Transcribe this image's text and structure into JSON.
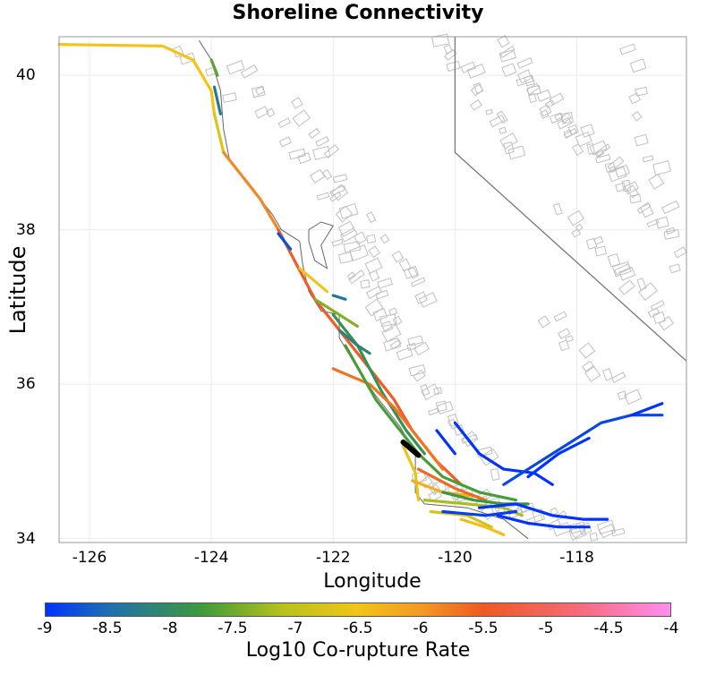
{
  "title": "Shoreline Connectivity",
  "x_axis": {
    "label": "Longitude",
    "ticks": [
      "-126",
      "-124",
      "-122",
      "-120",
      "-118"
    ],
    "range": [
      -126.5,
      -116.2
    ]
  },
  "y_axis": {
    "label": "Latitude",
    "ticks": [
      "40",
      "38",
      "36",
      "34"
    ],
    "range": [
      33.95,
      40.5
    ]
  },
  "colorbar": {
    "label": "Log10 Co-rupture Rate",
    "ticks": [
      "-9",
      "-8.5",
      "-8",
      "-7.5",
      "-7",
      "-6.5",
      "-6",
      "-5.5",
      "-5",
      "-4.5",
      "-4"
    ],
    "range": [
      -9,
      -4
    ],
    "colors": [
      "#0033ff",
      "#1f6fb0",
      "#3f9a3a",
      "#b8c21c",
      "#f2c418",
      "#f29a24",
      "#ef5a22",
      "#f46a78",
      "#ff8ef0"
    ]
  },
  "map_features": {
    "grid": true,
    "background_faults_color": "#c0c0c0",
    "state_border_color": "#777777",
    "coastline_color": "#666666",
    "highlighted_source_color": "#000000"
  },
  "chart_data": {
    "type": "map",
    "title": "Shoreline Connectivity",
    "xlabel": "Longitude",
    "ylabel": "Latitude",
    "xlim": [
      -126.5,
      -116.2
    ],
    "ylim": [
      33.95,
      40.5
    ],
    "colorscale_label": "Log10 Co-rupture Rate",
    "colorscale_range": [
      -9,
      -4
    ],
    "source_fault": {
      "name": "",
      "points": [
        [
          -120.85,
          35.25
        ],
        [
          -120.6,
          35.08
        ]
      ]
    },
    "fault_traces": [
      {
        "rate": -6.5,
        "points": [
          [
            -126.5,
            40.4
          ],
          [
            -124.8,
            40.38
          ],
          [
            -124.3,
            40.2
          ],
          [
            -124.0,
            39.8
          ],
          [
            -123.95,
            39.5
          ]
        ]
      },
      {
        "rate": -6.7,
        "points": [
          [
            -123.95,
            39.5
          ],
          [
            -123.8,
            39.0
          ]
        ]
      },
      {
        "rate": -5.7,
        "points": [
          [
            -123.8,
            39.0
          ],
          [
            -123.2,
            38.4
          ],
          [
            -122.9,
            38.0
          ]
        ]
      },
      {
        "rate": -5.2,
        "points": [
          [
            -122.9,
            38.0
          ],
          [
            -122.6,
            37.55
          ],
          [
            -122.3,
            37.1
          ],
          [
            -121.9,
            36.7
          ],
          [
            -121.4,
            36.2
          ],
          [
            -121.0,
            35.8
          ],
          [
            -120.7,
            35.4
          ],
          [
            -120.3,
            35.0
          ],
          [
            -119.9,
            34.7
          ]
        ]
      },
      {
        "rate": -7.6,
        "points": [
          [
            -124.0,
            40.2
          ],
          [
            -123.9,
            40.0
          ]
        ]
      },
      {
        "rate": -8.2,
        "points": [
          [
            -123.95,
            39.85
          ],
          [
            -123.85,
            39.5
          ]
        ]
      },
      {
        "rate": -8.7,
        "points": [
          [
            -122.9,
            37.95
          ],
          [
            -122.7,
            37.75
          ]
        ]
      },
      {
        "rate": -6.5,
        "points": [
          [
            -122.55,
            37.5
          ],
          [
            -122.1,
            37.2
          ]
        ]
      },
      {
        "rate": -8.3,
        "points": [
          [
            -122.0,
            37.15
          ],
          [
            -121.8,
            37.1
          ]
        ]
      },
      {
        "rate": -7.4,
        "points": [
          [
            -122.3,
            37.1
          ],
          [
            -121.9,
            36.9
          ],
          [
            -121.6,
            36.75
          ]
        ]
      },
      {
        "rate": -7.9,
        "points": [
          [
            -122.0,
            36.9
          ],
          [
            -121.6,
            36.5
          ],
          [
            -121.2,
            35.9
          ],
          [
            -120.8,
            35.4
          ],
          [
            -120.5,
            35.1
          ]
        ]
      },
      {
        "rate": -8.1,
        "points": [
          [
            -121.9,
            36.7
          ],
          [
            -121.6,
            36.5
          ],
          [
            -121.4,
            36.4
          ]
        ]
      },
      {
        "rate": -5.5,
        "points": [
          [
            -122.0,
            36.2
          ],
          [
            -121.4,
            36.0
          ],
          [
            -121.0,
            35.7
          ],
          [
            -120.6,
            35.3
          ],
          [
            -120.2,
            34.9
          ]
        ]
      },
      {
        "rate": -7.7,
        "points": [
          [
            -121.8,
            36.5
          ],
          [
            -121.3,
            35.8
          ],
          [
            -120.9,
            35.4
          ],
          [
            -120.6,
            35.1
          ],
          [
            -120.2,
            34.8
          ],
          [
            -119.6,
            34.6
          ],
          [
            -119.0,
            34.5
          ]
        ]
      },
      {
        "rate": -6.6,
        "points": [
          [
            -120.85,
            35.2
          ],
          [
            -120.65,
            34.85
          ],
          [
            -120.6,
            34.5
          ]
        ]
      },
      {
        "rate": -6.2,
        "points": [
          [
            -120.7,
            34.75
          ],
          [
            -120.2,
            34.6
          ],
          [
            -119.7,
            34.55
          ]
        ]
      },
      {
        "rate": -5.4,
        "points": [
          [
            -120.6,
            34.9
          ],
          [
            -120.0,
            34.65
          ],
          [
            -119.5,
            34.5
          ]
        ]
      },
      {
        "rate": -7.2,
        "points": [
          [
            -120.5,
            34.5
          ],
          [
            -119.8,
            34.45
          ],
          [
            -119.2,
            34.4
          ],
          [
            -118.9,
            34.3
          ]
        ]
      },
      {
        "rate": -6.8,
        "points": [
          [
            -120.4,
            34.35
          ],
          [
            -119.8,
            34.3
          ],
          [
            -119.4,
            34.15
          ]
        ]
      },
      {
        "rate": -7.8,
        "points": [
          [
            -120.2,
            34.6
          ],
          [
            -119.7,
            34.5
          ],
          [
            -119.2,
            34.45
          ],
          [
            -118.8,
            34.45
          ]
        ]
      },
      {
        "rate": -6.4,
        "points": [
          [
            -119.9,
            34.25
          ],
          [
            -119.5,
            34.15
          ],
          [
            -119.2,
            34.05
          ]
        ]
      },
      {
        "rate": -9.0,
        "points": [
          [
            -120.0,
            35.5
          ],
          [
            -119.6,
            35.1
          ],
          [
            -119.2,
            34.9
          ],
          [
            -118.7,
            34.85
          ],
          [
            -118.4,
            34.7
          ]
        ]
      },
      {
        "rate": -9.0,
        "points": [
          [
            -120.3,
            35.4
          ],
          [
            -120.0,
            35.1
          ]
        ]
      },
      {
        "rate": -8.8,
        "points": [
          [
            -119.2,
            34.7
          ],
          [
            -118.7,
            34.95
          ],
          [
            -118.2,
            35.2
          ],
          [
            -117.6,
            35.5
          ],
          [
            -117.1,
            35.6
          ],
          [
            -116.6,
            35.6
          ]
        ]
      },
      {
        "rate": -9.0,
        "points": [
          [
            -117.1,
            35.6
          ],
          [
            -116.6,
            35.75
          ]
        ]
      },
      {
        "rate": -9.0,
        "points": [
          [
            -118.8,
            34.8
          ],
          [
            -118.3,
            35.1
          ],
          [
            -117.8,
            35.3
          ]
        ]
      },
      {
        "rate": -9.0,
        "points": [
          [
            -119.6,
            34.4
          ],
          [
            -119.0,
            34.45
          ],
          [
            -118.4,
            34.3
          ],
          [
            -117.9,
            34.25
          ],
          [
            -117.5,
            34.25
          ]
        ]
      },
      {
        "rate": -9.0,
        "points": [
          [
            -119.3,
            34.3
          ],
          [
            -118.8,
            34.2
          ],
          [
            -118.3,
            34.15
          ],
          [
            -117.8,
            34.15
          ]
        ]
      },
      {
        "rate": -8.9,
        "points": [
          [
            -120.2,
            34.35
          ],
          [
            -119.5,
            34.3
          ],
          [
            -119.0,
            34.35
          ]
        ]
      }
    ]
  }
}
